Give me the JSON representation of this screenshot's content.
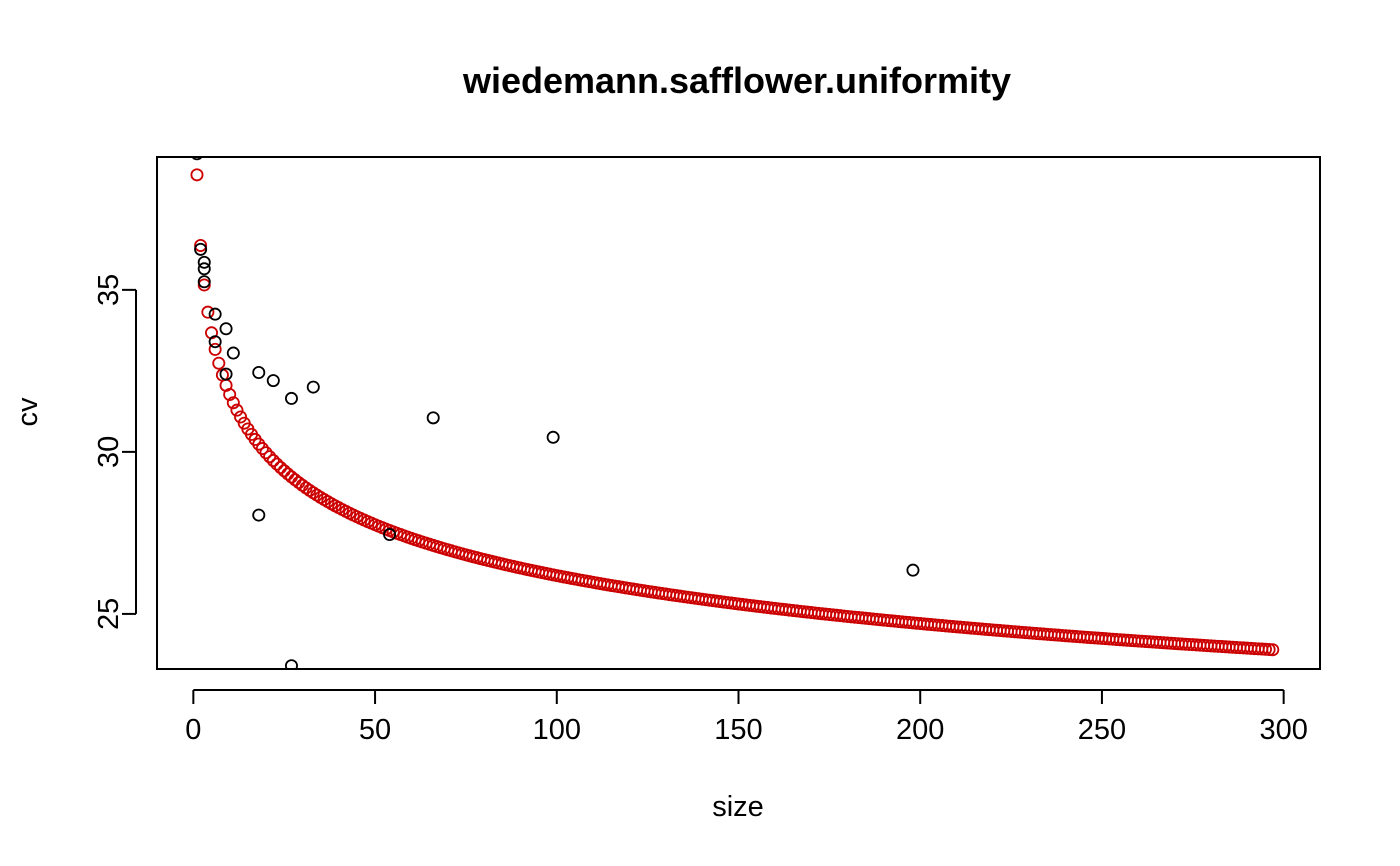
{
  "chart_data": {
    "type": "scatter",
    "title": "wiedemann.safflower.uniformity",
    "xlabel": "size",
    "ylabel": "cv",
    "xlim": [
      -10,
      310
    ],
    "ylim": [
      23.3,
      39.1
    ],
    "xticks": [
      0,
      50,
      100,
      150,
      200,
      250,
      300
    ],
    "yticks": [
      25,
      30,
      35
    ],
    "grid": false,
    "observed": {
      "color": "#000000",
      "x": [
        1,
        2,
        3,
        3,
        3,
        6,
        6,
        9,
        9,
        11,
        18,
        18,
        22,
        27,
        27,
        33,
        54,
        66,
        99,
        198
      ],
      "y": [
        39.2,
        36.25,
        35.85,
        35.65,
        35.25,
        34.25,
        33.4,
        33.8,
        32.4,
        33.05,
        32.45,
        28.05,
        32.2,
        31.65,
        23.4,
        32.0,
        27.45,
        31.05,
        30.45,
        26.35
      ]
    },
    "fitted": {
      "color": "#cc0000",
      "x_range": [
        1,
        297
      ],
      "model": "cv = 38.55 * size^-0.084"
    }
  }
}
